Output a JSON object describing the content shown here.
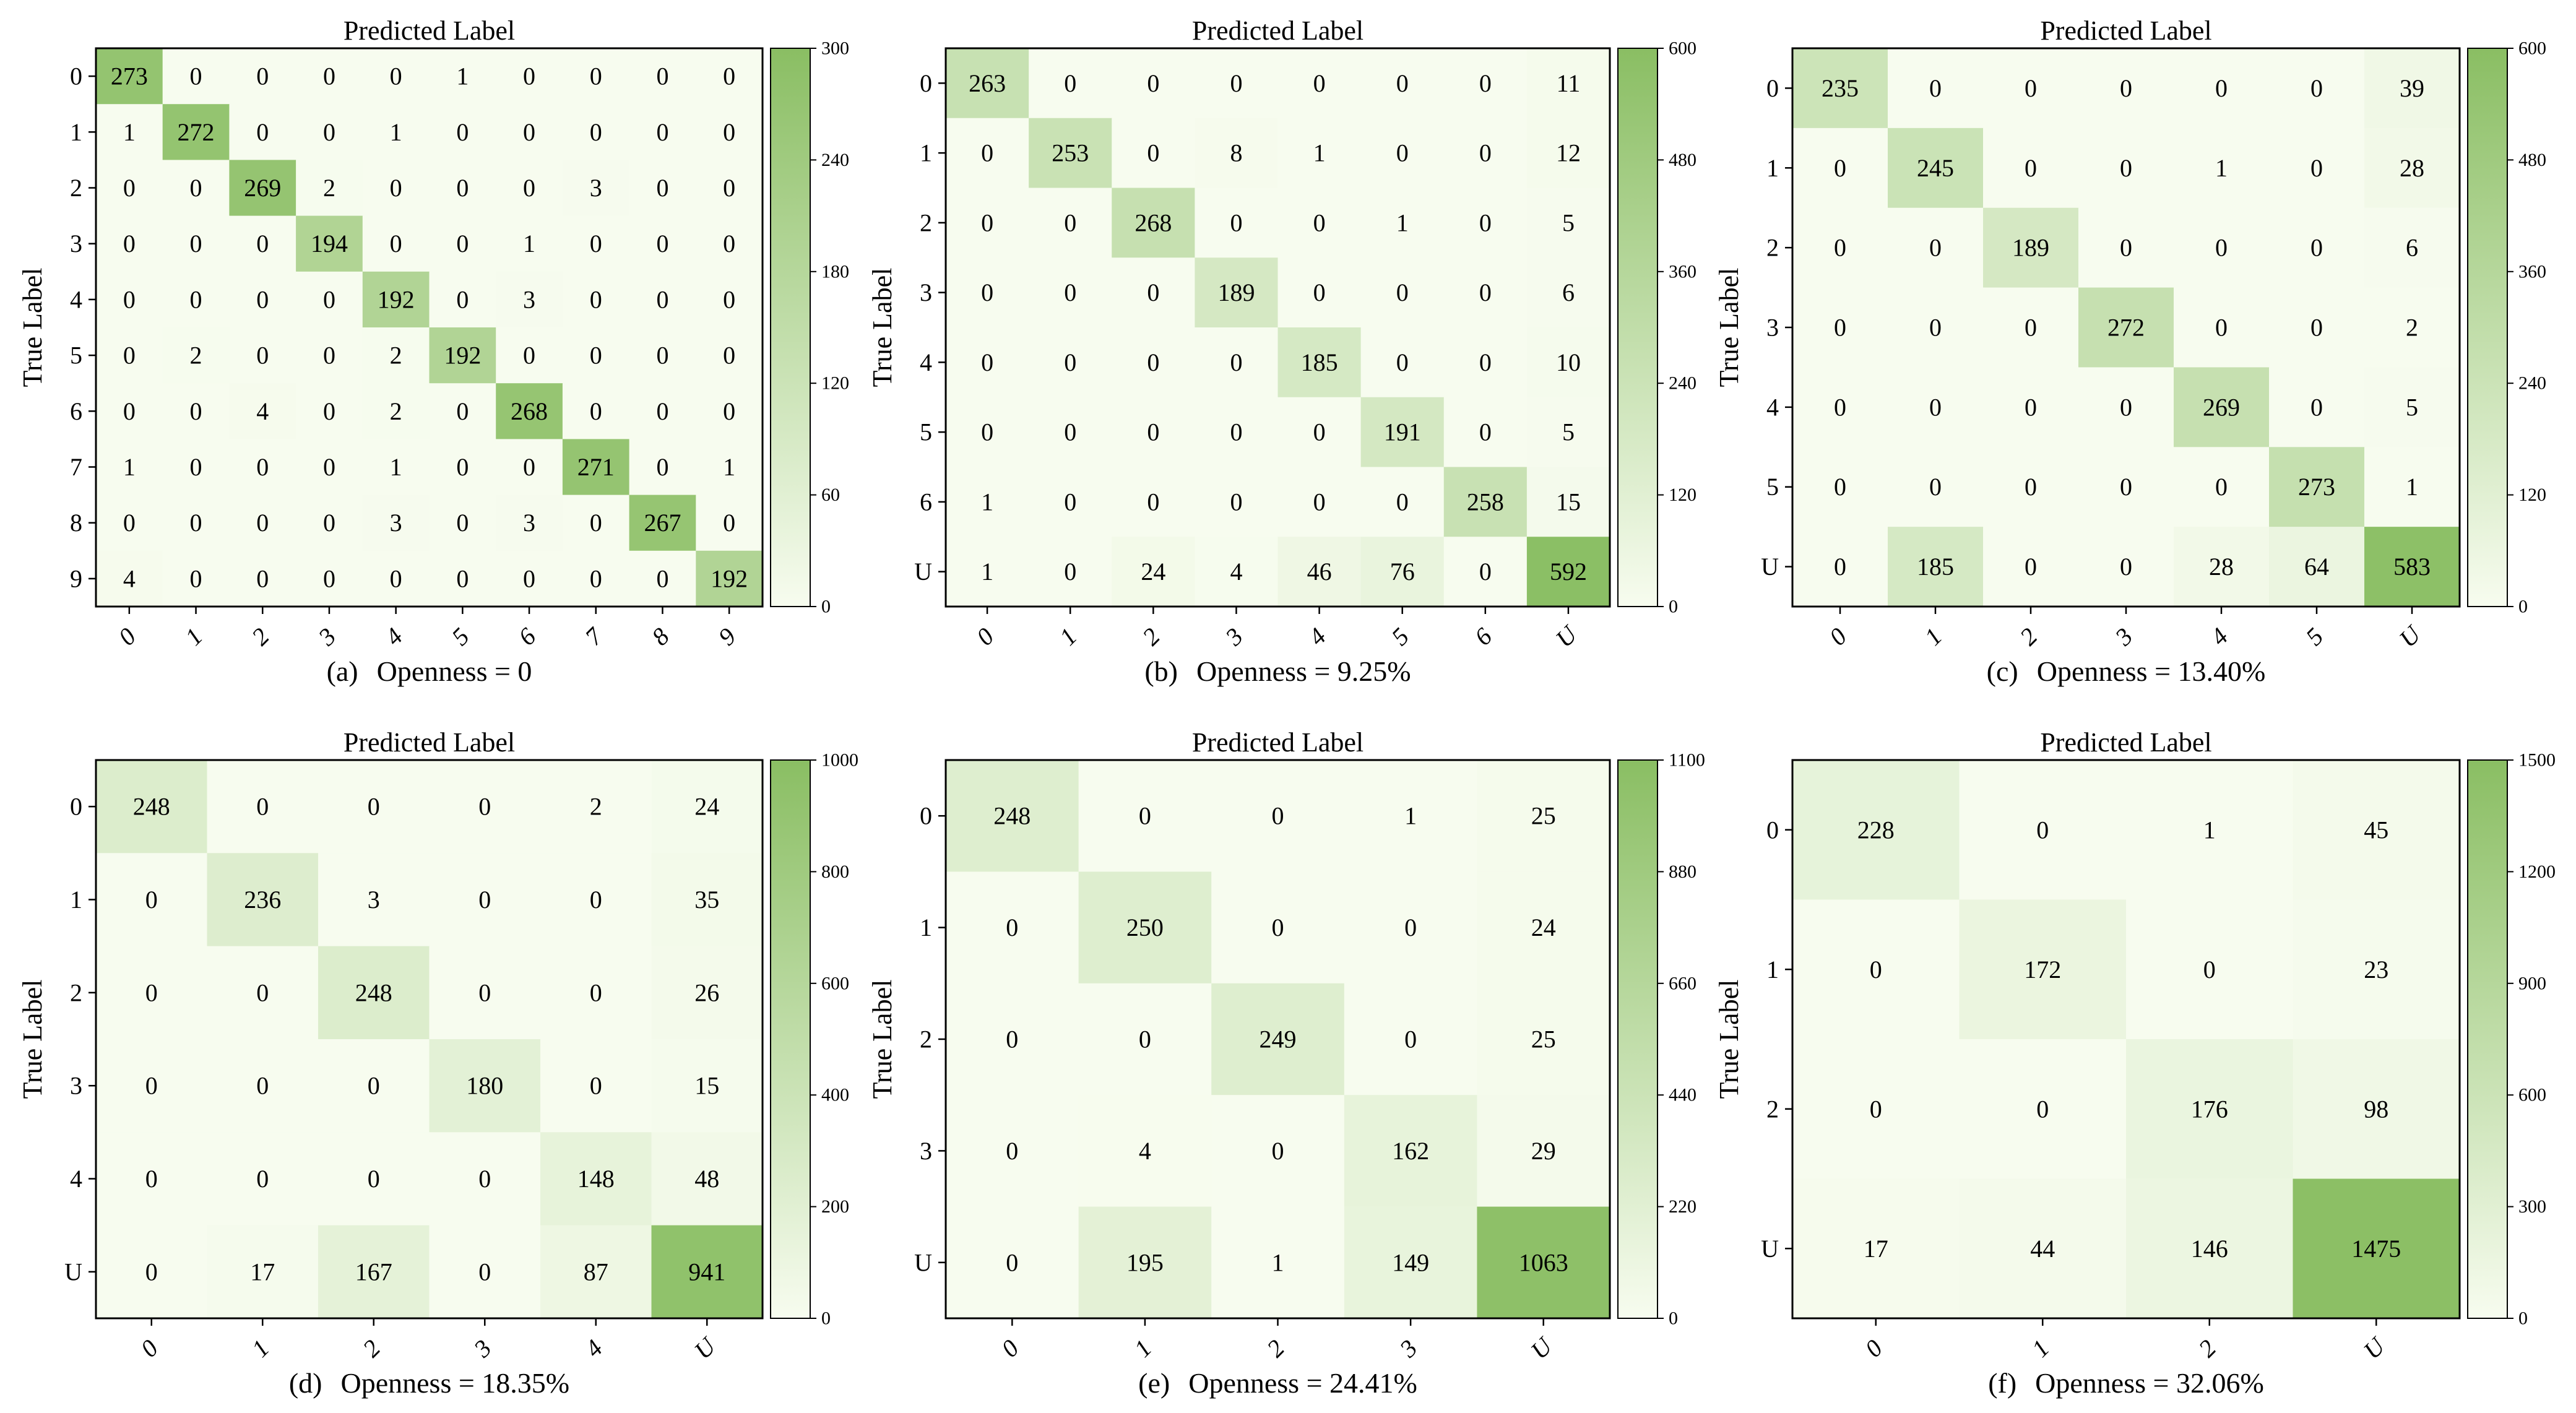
{
  "colors": {
    "low": "#f7fcef",
    "high": "#8abe63",
    "frame": "#000000",
    "background": "#ffffff"
  },
  "chart_data": [
    {
      "type": "heatmap",
      "caption_letter": "(a)",
      "caption_text": "Openness = 0",
      "title": "Predicted Label",
      "ylabel": "True Label",
      "x_labels": [
        "0",
        "1",
        "2",
        "3",
        "4",
        "5",
        "6",
        "7",
        "8",
        "9"
      ],
      "y_labels": [
        "0",
        "1",
        "2",
        "3",
        "4",
        "5",
        "6",
        "7",
        "8",
        "9"
      ],
      "colorbar": {
        "min": 0,
        "max": 300,
        "ticks": [
          "0",
          "60",
          "120",
          "180",
          "240",
          "300"
        ]
      },
      "matrix": [
        [
          273,
          0,
          0,
          0,
          0,
          1,
          0,
          0,
          0,
          0
        ],
        [
          1,
          272,
          0,
          0,
          1,
          0,
          0,
          0,
          0,
          0
        ],
        [
          0,
          0,
          269,
          2,
          0,
          0,
          0,
          3,
          0,
          0
        ],
        [
          0,
          0,
          0,
          194,
          0,
          0,
          1,
          0,
          0,
          0
        ],
        [
          0,
          0,
          0,
          0,
          192,
          0,
          3,
          0,
          0,
          0
        ],
        [
          0,
          2,
          0,
          0,
          2,
          192,
          0,
          0,
          0,
          0
        ],
        [
          0,
          0,
          4,
          0,
          2,
          0,
          268,
          0,
          0,
          0
        ],
        [
          1,
          0,
          0,
          0,
          1,
          0,
          0,
          271,
          0,
          1
        ],
        [
          0,
          0,
          0,
          0,
          3,
          0,
          3,
          0,
          267,
          0
        ],
        [
          4,
          0,
          0,
          0,
          0,
          0,
          0,
          0,
          0,
          192
        ]
      ]
    },
    {
      "type": "heatmap",
      "caption_letter": "(b)",
      "caption_text": "Openness = 9.25%",
      "title": "Predicted Label",
      "ylabel": "True Label",
      "x_labels": [
        "0",
        "1",
        "2",
        "3",
        "4",
        "5",
        "6",
        "U"
      ],
      "y_labels": [
        "0",
        "1",
        "2",
        "3",
        "4",
        "5",
        "6",
        "U"
      ],
      "colorbar": {
        "min": 0,
        "max": 600,
        "ticks": [
          "0",
          "120",
          "240",
          "360",
          "480",
          "600"
        ]
      },
      "matrix": [
        [
          263,
          0,
          0,
          0,
          0,
          0,
          0,
          11
        ],
        [
          0,
          253,
          0,
          8,
          1,
          0,
          0,
          12
        ],
        [
          0,
          0,
          268,
          0,
          0,
          1,
          0,
          5
        ],
        [
          0,
          0,
          0,
          189,
          0,
          0,
          0,
          6
        ],
        [
          0,
          0,
          0,
          0,
          185,
          0,
          0,
          10
        ],
        [
          0,
          0,
          0,
          0,
          0,
          191,
          0,
          5
        ],
        [
          1,
          0,
          0,
          0,
          0,
          0,
          258,
          15
        ],
        [
          1,
          0,
          24,
          4,
          46,
          76,
          0,
          592
        ]
      ]
    },
    {
      "type": "heatmap",
      "caption_letter": "(c)",
      "caption_text": "Openness = 13.40%",
      "title": "Predicted Label",
      "ylabel": "True Label",
      "x_labels": [
        "0",
        "1",
        "2",
        "3",
        "4",
        "5",
        "U"
      ],
      "y_labels": [
        "0",
        "1",
        "2",
        "3",
        "4",
        "5",
        "U"
      ],
      "colorbar": {
        "min": 0,
        "max": 600,
        "ticks": [
          "0",
          "120",
          "240",
          "360",
          "480",
          "600"
        ]
      },
      "matrix": [
        [
          235,
          0,
          0,
          0,
          0,
          0,
          39
        ],
        [
          0,
          245,
          0,
          0,
          1,
          0,
          28
        ],
        [
          0,
          0,
          189,
          0,
          0,
          0,
          6
        ],
        [
          0,
          0,
          0,
          272,
          0,
          0,
          2
        ],
        [
          0,
          0,
          0,
          0,
          269,
          0,
          5
        ],
        [
          0,
          0,
          0,
          0,
          0,
          273,
          1
        ],
        [
          0,
          185,
          0,
          0,
          28,
          64,
          583
        ]
      ]
    },
    {
      "type": "heatmap",
      "caption_letter": "(d)",
      "caption_text": "Openness = 18.35%",
      "title": "Predicted Label",
      "ylabel": "True Label",
      "x_labels": [
        "0",
        "1",
        "2",
        "3",
        "4",
        "U"
      ],
      "y_labels": [
        "0",
        "1",
        "2",
        "3",
        "4",
        "U"
      ],
      "colorbar": {
        "min": 0,
        "max": 1000,
        "ticks": [
          "0",
          "200",
          "400",
          "600",
          "800",
          "1000"
        ]
      },
      "matrix": [
        [
          248,
          0,
          0,
          0,
          2,
          24
        ],
        [
          0,
          236,
          3,
          0,
          0,
          35
        ],
        [
          0,
          0,
          248,
          0,
          0,
          26
        ],
        [
          0,
          0,
          0,
          180,
          0,
          15
        ],
        [
          0,
          0,
          0,
          0,
          148,
          48
        ],
        [
          0,
          17,
          167,
          0,
          87,
          941
        ]
      ]
    },
    {
      "type": "heatmap",
      "caption_letter": "(e)",
      "caption_text": "Openness = 24.41%",
      "title": "Predicted Label",
      "ylabel": "True Label",
      "x_labels": [
        "0",
        "1",
        "2",
        "3",
        "U"
      ],
      "y_labels": [
        "0",
        "1",
        "2",
        "3",
        "U"
      ],
      "colorbar": {
        "min": 0,
        "max": 1100,
        "ticks": [
          "0",
          "220",
          "440",
          "660",
          "880",
          "1100"
        ]
      },
      "matrix": [
        [
          248,
          0,
          0,
          1,
          25
        ],
        [
          0,
          250,
          0,
          0,
          24
        ],
        [
          0,
          0,
          249,
          0,
          25
        ],
        [
          0,
          4,
          0,
          162,
          29
        ],
        [
          0,
          195,
          1,
          149,
          1063
        ]
      ]
    },
    {
      "type": "heatmap",
      "caption_letter": "(f)",
      "caption_text": "Openness = 32.06%",
      "title": "Predicted Label",
      "ylabel": "True Label",
      "x_labels": [
        "0",
        "1",
        "2",
        "U"
      ],
      "y_labels": [
        "0",
        "1",
        "2",
        "U"
      ],
      "colorbar": {
        "min": 0,
        "max": 1500,
        "ticks": [
          "0",
          "300",
          "600",
          "900",
          "1200",
          "1500"
        ]
      },
      "matrix": [
        [
          228,
          0,
          1,
          45
        ],
        [
          0,
          172,
          0,
          23
        ],
        [
          0,
          0,
          176,
          98
        ],
        [
          17,
          44,
          146,
          1475
        ]
      ]
    }
  ]
}
